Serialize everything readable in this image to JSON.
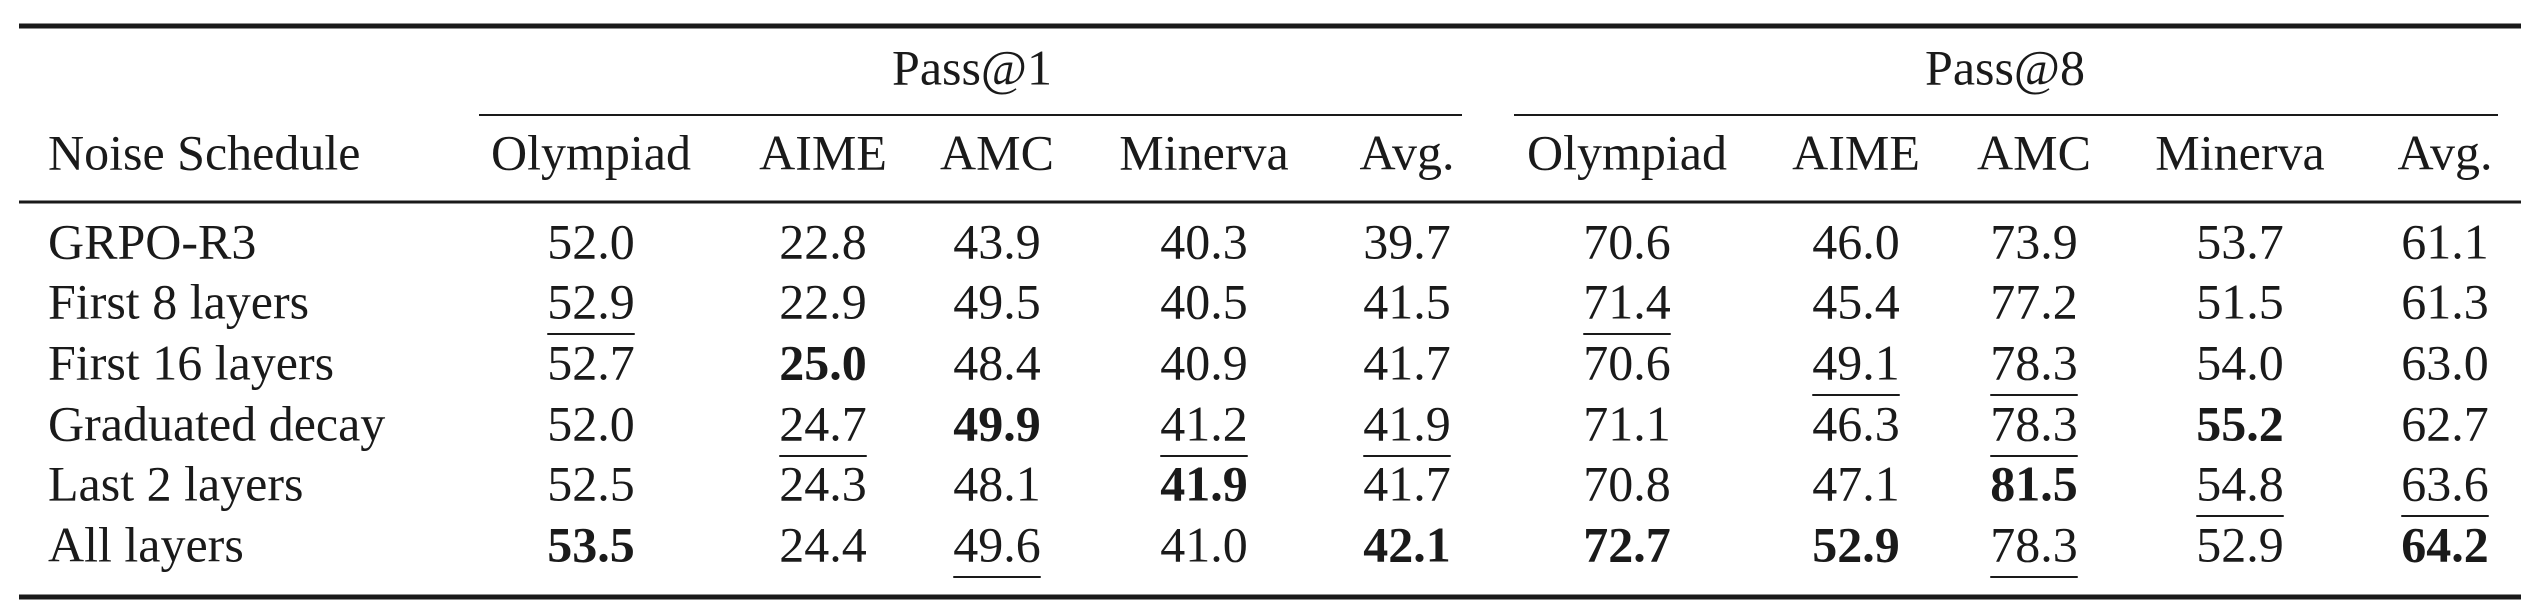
{
  "table": {
    "group_headers": [
      "Pass@1",
      "Pass@8"
    ],
    "columns": [
      "Noise Schedule",
      "Olympiad",
      "AIME",
      "AMC",
      "Minerva",
      "Avg.",
      "Olympiad",
      "AIME",
      "AMC",
      "Minerva",
      "Avg."
    ],
    "rows": [
      [
        "GRPO-R3",
        "52.0",
        "22.8",
        "43.9",
        "40.3",
        "39.7",
        "70.6",
        "46.0",
        "73.9",
        "53.7",
        "61.1"
      ],
      [
        "First 8 layers",
        "52.9",
        "22.9",
        "49.5",
        "40.5",
        "41.5",
        "71.4",
        "45.4",
        "77.2",
        "51.5",
        "61.3"
      ],
      [
        "First 16 layers",
        "52.7",
        "25.0",
        "48.4",
        "40.9",
        "41.7",
        "70.6",
        "49.1",
        "78.3",
        "54.0",
        "63.0"
      ],
      [
        "Graduated decay",
        "52.0",
        "24.7",
        "49.9",
        "41.2",
        "41.9",
        "71.1",
        "46.3",
        "78.3",
        "55.2",
        "62.7"
      ],
      [
        "Last 2 layers",
        "52.5",
        "24.3",
        "48.1",
        "41.9",
        "41.7",
        "70.8",
        "47.1",
        "81.5",
        "54.8",
        "63.6"
      ],
      [
        "All layers",
        "53.5",
        "24.4",
        "49.6",
        "41.0",
        "42.1",
        "72.7",
        "52.9",
        "78.3",
        "52.9",
        "64.2"
      ]
    ],
    "bold": [
      [
        2,
        2
      ],
      [
        3,
        3
      ],
      [
        3,
        9
      ],
      [
        4,
        4
      ],
      [
        4,
        8
      ],
      [
        5,
        1
      ],
      [
        5,
        5
      ],
      [
        5,
        6
      ],
      [
        5,
        7
      ],
      [
        5,
        10
      ]
    ],
    "underline": [
      [
        1,
        1
      ],
      [
        1,
        6
      ],
      [
        2,
        7
      ],
      [
        2,
        8
      ],
      [
        3,
        2
      ],
      [
        3,
        4
      ],
      [
        3,
        5
      ],
      [
        3,
        8
      ],
      [
        4,
        9
      ],
      [
        4,
        10
      ],
      [
        5,
        3
      ],
      [
        5,
        8
      ]
    ]
  }
}
